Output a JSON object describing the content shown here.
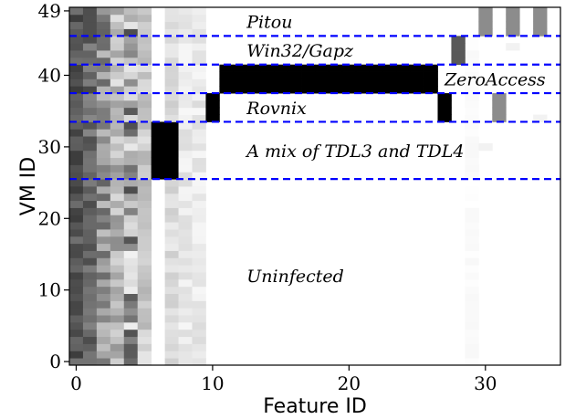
{
  "chart_data": {
    "type": "heatmap",
    "xlabel": "Feature ID",
    "ylabel": "VM ID",
    "xlim": [
      -0.5,
      35.5
    ],
    "ylim": [
      -0.5,
      49.5
    ],
    "x_ticks": [
      0,
      10,
      20,
      30
    ],
    "y_ticks": [
      0,
      10,
      20,
      30,
      40,
      49
    ],
    "colormap": "grayscale (0 = white, 1 = black)",
    "grid": false,
    "group_boundaries": {
      "y": [
        25.5,
        33.5,
        37.5,
        41.5,
        45.5
      ],
      "color": "#0000ff",
      "style": "dashed"
    },
    "annotations": [
      {
        "text": "Pitou",
        "x": 12.5,
        "y": 47.5
      },
      {
        "text": "Win32/Gapz",
        "x": 12.5,
        "y": 43.5
      },
      {
        "text": "ZeroAccess",
        "x": 27.0,
        "y": 39.5
      },
      {
        "text": "Rovnix",
        "x": 12.5,
        "y": 35.5
      },
      {
        "text": "A mix of TDL3 and TDL4",
        "x": 12.5,
        "y": 29.5
      },
      {
        "text": "Uninfected",
        "x": 12.5,
        "y": 12.0
      }
    ],
    "feature_columns": [
      {
        "x": [
          0,
          0
        ],
        "y": [
          0,
          49
        ],
        "range": [
          0.55,
          0.78
        ]
      },
      {
        "x": [
          1,
          1
        ],
        "y": [
          0,
          49
        ],
        "range": [
          0.45,
          0.72
        ]
      },
      {
        "x": [
          2,
          2
        ],
        "y": [
          0,
          49
        ],
        "range": [
          0.25,
          0.62
        ]
      },
      {
        "x": [
          3,
          3
        ],
        "y": [
          0,
          49
        ],
        "range": [
          0.1,
          0.45
        ]
      },
      {
        "x": [
          4,
          4
        ],
        "y": [
          0,
          49
        ],
        "range": [
          0.05,
          0.7
        ]
      },
      {
        "x": [
          5,
          5
        ],
        "y": [
          0,
          49
        ],
        "range": [
          0.1,
          0.3
        ]
      },
      {
        "x": [
          7,
          7
        ],
        "y": [
          0,
          49
        ],
        "range": [
          0.08,
          0.2
        ]
      },
      {
        "x": [
          8,
          9
        ],
        "y": [
          0,
          49
        ],
        "range": [
          0.03,
          0.14
        ]
      },
      {
        "x": [
          29,
          29
        ],
        "y": [
          0,
          45
        ],
        "range": [
          0.0,
          0.03
        ]
      }
    ],
    "solid_blocks": [
      {
        "x": [
          6,
          7
        ],
        "y": [
          26,
          33
        ],
        "value": 1.0
      },
      {
        "x": [
          10,
          10
        ],
        "y": [
          34,
          37
        ],
        "value": 1.0
      },
      {
        "x": [
          11,
          26
        ],
        "y": [
          38,
          41
        ],
        "value": 1.0
      },
      {
        "x": [
          27,
          27
        ],
        "y": [
          34,
          37
        ],
        "value": 1.0
      },
      {
        "x": [
          28,
          28
        ],
        "y": [
          42,
          45
        ],
        "value": 0.65
      },
      {
        "x": [
          31,
          31
        ],
        "y": [
          34,
          37
        ],
        "value": 0.45
      },
      {
        "x": [
          30,
          30
        ],
        "y": [
          46,
          49
        ],
        "value": 0.45
      },
      {
        "x": [
          32,
          32
        ],
        "y": [
          46,
          49
        ],
        "value": 0.45
      },
      {
        "x": [
          34,
          34
        ],
        "y": [
          46,
          49
        ],
        "value": 0.45
      },
      {
        "x": [
          30,
          30
        ],
        "y": [
          30,
          30
        ],
        "value": 0.05
      },
      {
        "x": [
          32,
          32
        ],
        "y": [
          44,
          44
        ],
        "value": 0.05
      },
      {
        "x": [
          34,
          34
        ],
        "y": [
          34,
          34
        ],
        "value": 0.05
      }
    ]
  }
}
